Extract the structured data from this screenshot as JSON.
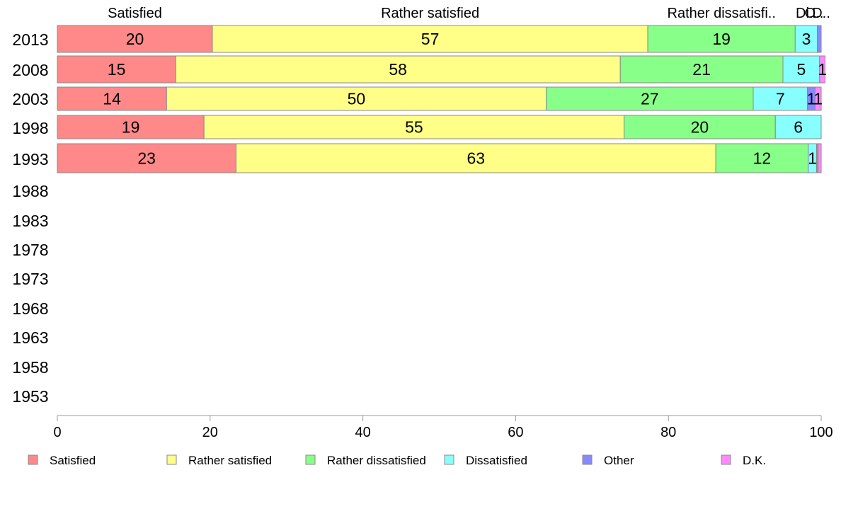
{
  "chart_data": {
    "type": "bar",
    "orientation": "horizontal",
    "stacked": true,
    "categories": [
      "2013",
      "2008",
      "2003",
      "1998",
      "1993",
      "1988",
      "1983",
      "1978",
      "1973",
      "1968",
      "1963",
      "1958",
      "1953"
    ],
    "series": [
      {
        "name": "Satisfied",
        "color": "#ff8888",
        "values": [
          20.3,
          15.5,
          14.3,
          19.2,
          23.4,
          null,
          null,
          null,
          null,
          null,
          null,
          null,
          null
        ]
      },
      {
        "name": "Rather satisfied",
        "color": "#ffff88",
        "values": [
          57,
          58.2,
          49.7,
          55,
          62.8,
          null,
          null,
          null,
          null,
          null,
          null,
          null,
          null
        ]
      },
      {
        "name": "Rather dissatisfied",
        "color": "#88ff88",
        "values": [
          19.3,
          21.3,
          27.1,
          19.8,
          12.1,
          null,
          null,
          null,
          null,
          null,
          null,
          null,
          null
        ]
      },
      {
        "name": "Dissatisfied",
        "color": "#88ffff",
        "values": [
          2.9,
          4.8,
          7.1,
          6,
          1.1,
          null,
          null,
          null,
          null,
          null,
          null,
          null,
          null
        ]
      },
      {
        "name": "Other",
        "color": "#8888ff",
        "values": [
          0.5,
          0,
          1,
          0,
          0.2,
          null,
          null,
          null,
          null,
          null,
          null,
          null,
          null
        ]
      },
      {
        "name": "D.K.",
        "color": "#ff88ff",
        "values": [
          0,
          0.7,
          0.8,
          0,
          0.4,
          null,
          null,
          null,
          null,
          null,
          null,
          null,
          null
        ]
      }
    ],
    "data_labels": [
      [
        "20",
        "57",
        "19",
        "3",
        "",
        ""
      ],
      [
        "15",
        "58",
        "21",
        "5",
        "",
        "1"
      ],
      [
        "14",
        "50",
        "27",
        "7",
        "1",
        "1"
      ],
      [
        "19",
        "55",
        "20",
        "6",
        "",
        ""
      ],
      [
        "23",
        "63",
        "12",
        "1",
        "",
        ""
      ]
    ],
    "top_labels": [
      "Satisfied",
      "Rather satisfied",
      "Rather dissatisfi..",
      "Di..",
      "O..",
      "D.."
    ],
    "xlim": [
      0,
      100
    ],
    "xticks": [
      0,
      20,
      40,
      60,
      80,
      100
    ],
    "legend_position": "bottom",
    "grid": false
  }
}
